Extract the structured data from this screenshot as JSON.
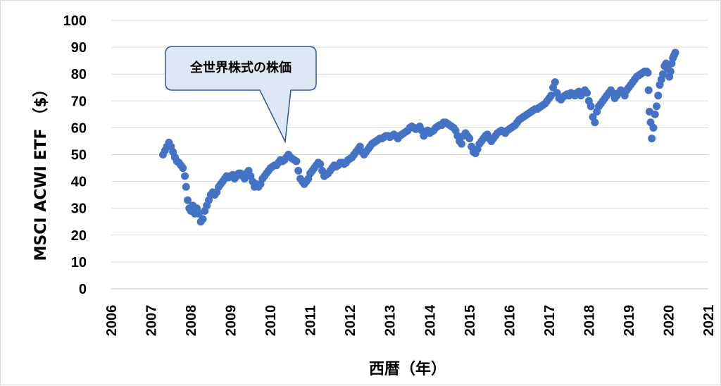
{
  "chart_data": {
    "type": "scatter",
    "xlabel": "西暦（年）",
    "ylabel": "MSCI ACWI ETF （$）",
    "xlim": [
      2006,
      2021
    ],
    "ylim": [
      0,
      100
    ],
    "x_ticks": [
      "2006",
      "2007",
      "2008",
      "2009",
      "2010",
      "2011",
      "2012",
      "2013",
      "2014",
      "2015",
      "2016",
      "2017",
      "2018",
      "2019",
      "2020",
      "2021"
    ],
    "y_ticks": [
      "0",
      "10",
      "20",
      "30",
      "40",
      "50",
      "60",
      "70",
      "80",
      "90",
      "100"
    ],
    "grid": "horizontal",
    "annotation": {
      "text": "全世界株式の株価",
      "target": [
        2010.42,
        54
      ]
    },
    "series": [
      {
        "color": "#4472c4",
        "points": [
          [
            2007.3,
            50
          ],
          [
            2007.35,
            51.5
          ],
          [
            2007.4,
            53
          ],
          [
            2007.45,
            54.5
          ],
          [
            2007.5,
            53
          ],
          [
            2007.55,
            51
          ],
          [
            2007.6,
            49
          ],
          [
            2007.65,
            47.5
          ],
          [
            2007.7,
            47
          ],
          [
            2007.75,
            46
          ],
          [
            2007.8,
            45
          ],
          [
            2007.85,
            42
          ],
          [
            2007.88,
            38
          ],
          [
            2007.92,
            33
          ],
          [
            2007.96,
            30
          ],
          [
            2008.0,
            29
          ],
          [
            2008.05,
            31
          ],
          [
            2008.1,
            28
          ],
          [
            2008.15,
            30
          ],
          [
            2008.2,
            28
          ],
          [
            2008.25,
            25
          ],
          [
            2008.3,
            26
          ],
          [
            2008.35,
            29
          ],
          [
            2008.4,
            31
          ],
          [
            2008.45,
            33
          ],
          [
            2008.5,
            35
          ],
          [
            2008.55,
            36
          ],
          [
            2008.6,
            35
          ],
          [
            2008.65,
            36
          ],
          [
            2008.7,
            38
          ],
          [
            2008.75,
            39
          ],
          [
            2008.8,
            40
          ],
          [
            2008.85,
            41
          ],
          [
            2008.9,
            42
          ],
          [
            2008.95,
            41.5
          ],
          [
            2009.0,
            42
          ],
          [
            2009.05,
            42.5
          ],
          [
            2009.1,
            41
          ],
          [
            2009.15,
            42
          ],
          [
            2009.2,
            43
          ],
          [
            2009.25,
            43
          ],
          [
            2009.3,
            42
          ],
          [
            2009.35,
            41
          ],
          [
            2009.4,
            43
          ],
          [
            2009.45,
            44
          ],
          [
            2009.5,
            42
          ],
          [
            2009.55,
            40
          ],
          [
            2009.6,
            38
          ],
          [
            2009.65,
            39
          ],
          [
            2009.7,
            38
          ],
          [
            2009.75,
            39
          ],
          [
            2009.8,
            41
          ],
          [
            2009.85,
            42
          ],
          [
            2009.9,
            43
          ],
          [
            2009.95,
            44
          ],
          [
            2010.0,
            45
          ],
          [
            2010.05,
            45.5
          ],
          [
            2010.1,
            46
          ],
          [
            2010.15,
            46
          ],
          [
            2010.2,
            47
          ],
          [
            2010.25,
            48
          ],
          [
            2010.3,
            47.5
          ],
          [
            2010.35,
            48
          ],
          [
            2010.4,
            49
          ],
          [
            2010.45,
            50
          ],
          [
            2010.5,
            49
          ],
          [
            2010.55,
            48.5
          ],
          [
            2010.6,
            48
          ],
          [
            2010.65,
            47.5
          ],
          [
            2010.7,
            44
          ],
          [
            2010.75,
            41
          ],
          [
            2010.8,
            40
          ],
          [
            2010.85,
            39
          ],
          [
            2010.9,
            40
          ],
          [
            2010.95,
            41
          ],
          [
            2011.0,
            43
          ],
          [
            2011.05,
            44
          ],
          [
            2011.1,
            45
          ],
          [
            2011.15,
            46
          ],
          [
            2011.2,
            47
          ],
          [
            2011.25,
            46.5
          ],
          [
            2011.3,
            44
          ],
          [
            2011.35,
            42
          ],
          [
            2011.4,
            42.5
          ],
          [
            2011.45,
            43
          ],
          [
            2011.5,
            44
          ],
          [
            2011.55,
            45
          ],
          [
            2011.6,
            46
          ],
          [
            2011.65,
            45.5
          ],
          [
            2011.7,
            46
          ],
          [
            2011.75,
            47
          ],
          [
            2011.8,
            47
          ],
          [
            2011.85,
            46.5
          ],
          [
            2011.9,
            47
          ],
          [
            2011.95,
            48
          ],
          [
            2012.0,
            48.5
          ],
          [
            2012.05,
            49
          ],
          [
            2012.1,
            50
          ],
          [
            2012.15,
            51
          ],
          [
            2012.2,
            52
          ],
          [
            2012.25,
            53
          ],
          [
            2012.3,
            51
          ],
          [
            2012.35,
            50
          ],
          [
            2012.4,
            51
          ],
          [
            2012.45,
            52
          ],
          [
            2012.5,
            53
          ],
          [
            2012.55,
            54
          ],
          [
            2012.6,
            54.5
          ],
          [
            2012.65,
            55
          ],
          [
            2012.7,
            55.5
          ],
          [
            2012.75,
            56
          ],
          [
            2012.8,
            56
          ],
          [
            2012.85,
            56.5
          ],
          [
            2012.9,
            57
          ],
          [
            2012.95,
            57
          ],
          [
            2013.0,
            56.5
          ],
          [
            2013.05,
            57
          ],
          [
            2013.1,
            57.5
          ],
          [
            2013.15,
            57
          ],
          [
            2013.2,
            56
          ],
          [
            2013.25,
            57
          ],
          [
            2013.3,
            57.5
          ],
          [
            2013.35,
            58
          ],
          [
            2013.4,
            58.5
          ],
          [
            2013.45,
            59
          ],
          [
            2013.5,
            60
          ],
          [
            2013.55,
            60.5
          ],
          [
            2013.6,
            60
          ],
          [
            2013.65,
            59.5
          ],
          [
            2013.7,
            60
          ],
          [
            2013.75,
            60.5
          ],
          [
            2013.8,
            59
          ],
          [
            2013.85,
            57
          ],
          [
            2013.9,
            58
          ],
          [
            2013.95,
            59
          ],
          [
            2014.0,
            58
          ],
          [
            2014.05,
            58.5
          ],
          [
            2014.1,
            59
          ],
          [
            2014.15,
            60
          ],
          [
            2014.2,
            60.5
          ],
          [
            2014.25,
            61
          ],
          [
            2014.3,
            61
          ],
          [
            2014.35,
            62
          ],
          [
            2014.4,
            62
          ],
          [
            2014.45,
            61.5
          ],
          [
            2014.5,
            61
          ],
          [
            2014.55,
            60.5
          ],
          [
            2014.6,
            60
          ],
          [
            2014.65,
            59
          ],
          [
            2014.7,
            57
          ],
          [
            2014.75,
            55
          ],
          [
            2014.8,
            54
          ],
          [
            2014.85,
            57
          ],
          [
            2014.9,
            58
          ],
          [
            2014.95,
            57
          ],
          [
            2015.0,
            56
          ],
          [
            2015.05,
            53
          ],
          [
            2015.1,
            51
          ],
          [
            2015.15,
            50.5
          ],
          [
            2015.2,
            52
          ],
          [
            2015.25,
            54
          ],
          [
            2015.3,
            55
          ],
          [
            2015.35,
            56
          ],
          [
            2015.4,
            57
          ],
          [
            2015.45,
            57.5
          ],
          [
            2015.5,
            56
          ],
          [
            2015.55,
            55
          ],
          [
            2015.6,
            56
          ],
          [
            2015.65,
            57
          ],
          [
            2015.7,
            58
          ],
          [
            2015.75,
            58.5
          ],
          [
            2015.8,
            59
          ],
          [
            2015.85,
            58.5
          ],
          [
            2015.9,
            58
          ],
          [
            2015.95,
            59
          ],
          [
            2016.0,
            59.5
          ],
          [
            2016.05,
            60
          ],
          [
            2016.1,
            60.5
          ],
          [
            2016.15,
            61
          ],
          [
            2016.2,
            62
          ],
          [
            2016.25,
            63
          ],
          [
            2016.3,
            63.5
          ],
          [
            2016.35,
            64
          ],
          [
            2016.4,
            64.5
          ],
          [
            2016.45,
            65
          ],
          [
            2016.5,
            65.5
          ],
          [
            2016.55,
            66
          ],
          [
            2016.6,
            66.5
          ],
          [
            2016.65,
            67
          ],
          [
            2016.7,
            67
          ],
          [
            2016.75,
            67.5
          ],
          [
            2016.8,
            68
          ],
          [
            2016.85,
            68.5
          ],
          [
            2016.9,
            69
          ],
          [
            2016.95,
            70
          ],
          [
            2017.0,
            71
          ],
          [
            2017.05,
            72
          ],
          [
            2017.1,
            75
          ],
          [
            2017.15,
            77
          ],
          [
            2017.2,
            73
          ],
          [
            2017.25,
            71
          ],
          [
            2017.3,
            70.5
          ],
          [
            2017.35,
            71.5
          ],
          [
            2017.4,
            72
          ],
          [
            2017.45,
            72.5
          ],
          [
            2017.5,
            72
          ],
          [
            2017.55,
            73
          ],
          [
            2017.6,
            72.5
          ],
          [
            2017.65,
            72
          ],
          [
            2017.7,
            73
          ],
          [
            2017.75,
            73.5
          ],
          [
            2017.8,
            72
          ],
          [
            2017.85,
            73
          ],
          [
            2017.9,
            74
          ],
          [
            2017.95,
            73
          ],
          [
            2018.0,
            70
          ],
          [
            2018.05,
            68
          ],
          [
            2018.1,
            64
          ],
          [
            2018.15,
            62
          ],
          [
            2018.2,
            66
          ],
          [
            2018.25,
            68
          ],
          [
            2018.3,
            69
          ],
          [
            2018.35,
            70
          ],
          [
            2018.4,
            71
          ],
          [
            2018.45,
            72
          ],
          [
            2018.5,
            73
          ],
          [
            2018.55,
            74
          ],
          [
            2018.6,
            73
          ],
          [
            2018.65,
            71
          ],
          [
            2018.7,
            72
          ],
          [
            2018.75,
            73
          ],
          [
            2018.8,
            74
          ],
          [
            2018.85,
            73
          ],
          [
            2018.9,
            72
          ],
          [
            2018.95,
            74
          ],
          [
            2019.0,
            75
          ],
          [
            2019.05,
            76
          ],
          [
            2019.1,
            77
          ],
          [
            2019.15,
            78
          ],
          [
            2019.2,
            79
          ],
          [
            2019.25,
            79.5
          ],
          [
            2019.3,
            80
          ],
          [
            2019.35,
            80.5
          ],
          [
            2019.4,
            81
          ],
          [
            2019.45,
            81
          ],
          [
            2019.48,
            80.5
          ],
          [
            2019.5,
            74
          ],
          [
            2019.52,
            66
          ],
          [
            2019.55,
            62
          ],
          [
            2019.58,
            56
          ],
          [
            2019.62,
            60
          ],
          [
            2019.66,
            65
          ],
          [
            2019.7,
            68
          ],
          [
            2019.74,
            72
          ],
          [
            2019.78,
            76
          ],
          [
            2019.82,
            78
          ],
          [
            2019.86,
            80
          ],
          [
            2019.9,
            83
          ],
          [
            2019.94,
            84
          ],
          [
            2019.98,
            82
          ],
          [
            2020.02,
            79
          ],
          [
            2020.05,
            81
          ],
          [
            2020.08,
            84
          ],
          [
            2020.11,
            86
          ],
          [
            2020.14,
            87
          ],
          [
            2020.17,
            88
          ]
        ]
      }
    ]
  }
}
